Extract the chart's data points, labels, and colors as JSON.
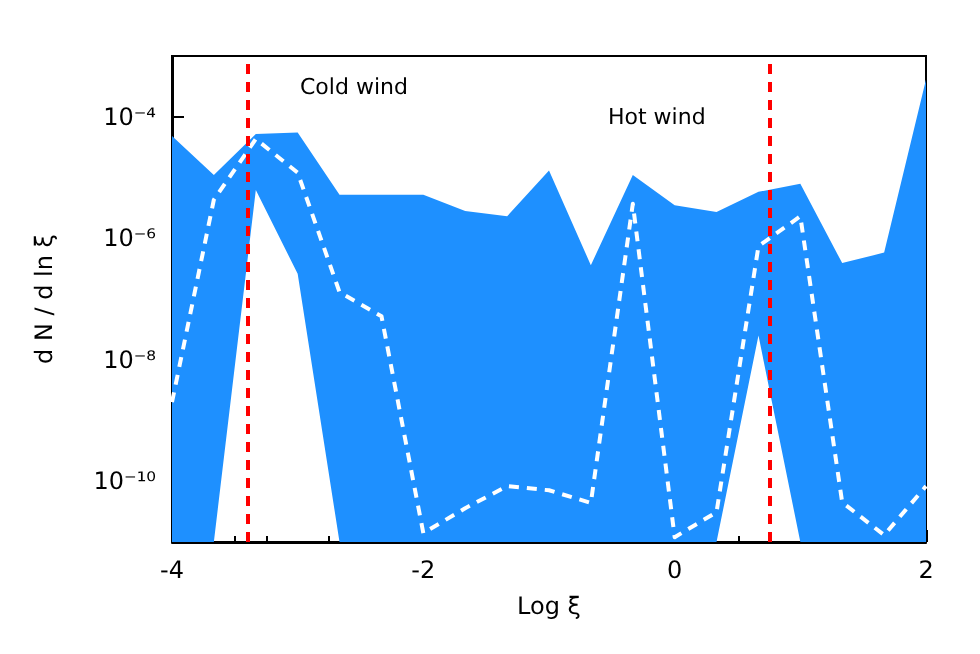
{
  "chart_data": {
    "type": "line",
    "xlabel": "Log ξ",
    "ylabel": "d N / d ln ξ",
    "x": [
      -4,
      -3.667,
      -3.333,
      -3,
      -2.667,
      -2.333,
      -2,
      -1.667,
      -1.333,
      -1,
      -0.667,
      -0.333,
      0,
      0.333,
      0.667,
      1,
      1.333,
      1.667,
      2
    ],
    "series": [
      {
        "color": "#ffffff",
        "line_style": "dashed",
        "marker": "none",
        "values": [
          2e-09,
          4.3e-06,
          4.3e-05,
          1.2e-05,
          1.3e-07,
          5.2e-08,
          1.4e-11,
          3.6e-11,
          8.3e-11,
          7.1e-11,
          4.4e-11,
          3.7e-06,
          1.2e-11,
          3.1e-11,
          7.4e-07,
          2.3e-06,
          4.5e-11,
          1.3e-11,
          8.3e-11
        ],
        "upper": [
          4.8e-05,
          1.1e-05,
          5.2e-05,
          5.5e-05,
          5.2e-06,
          5.2e-06,
          5.2e-06,
          2.8e-06,
          2.3e-06,
          1.3e-05,
          3.6e-07,
          1.1e-05,
          3.5e-06,
          2.7e-06,
          5.8e-06,
          7.9e-06,
          3.9e-07,
          5.8e-07,
          0.00041
        ],
        "lower": [
          1e-11,
          1e-11,
          6.2e-06,
          2.6e-07,
          1e-11,
          1e-11,
          1e-11,
          1e-11,
          1e-11,
          1e-11,
          1e-11,
          1e-11,
          1e-11,
          1e-11,
          2.5e-08,
          1e-11,
          1e-11,
          1e-11,
          1e-11
        ]
      }
    ],
    "ref_lines": [
      {
        "axis": "x",
        "value": -3.4,
        "color": "#ff0000",
        "line_style": "dashed"
      },
      {
        "axis": "x",
        "value": 0.75,
        "color": "#ff0000",
        "line_style": "dashed"
      }
    ],
    "annotations": [
      "Cold wind",
      "Hot wind"
    ],
    "log": "y",
    "xlim": [
      -4,
      2
    ],
    "ylim": [
      1e-11,
      0.001
    ],
    "xticks": [
      -4,
      -2,
      0,
      2
    ],
    "yticks": [
      {
        "value": 1e-10,
        "label": "10⁻¹⁰"
      },
      {
        "value": 1e-09,
        "label": null
      },
      {
        "value": 1e-08,
        "label": "10⁻⁸"
      },
      {
        "value": 1e-07,
        "label": null
      },
      {
        "value": 1e-06,
        "label": "10⁻⁶"
      },
      {
        "value": 1e-05,
        "label": null
      },
      {
        "value": 0.0001,
        "label": "10⁻⁴"
      }
    ],
    "grid": false
  }
}
